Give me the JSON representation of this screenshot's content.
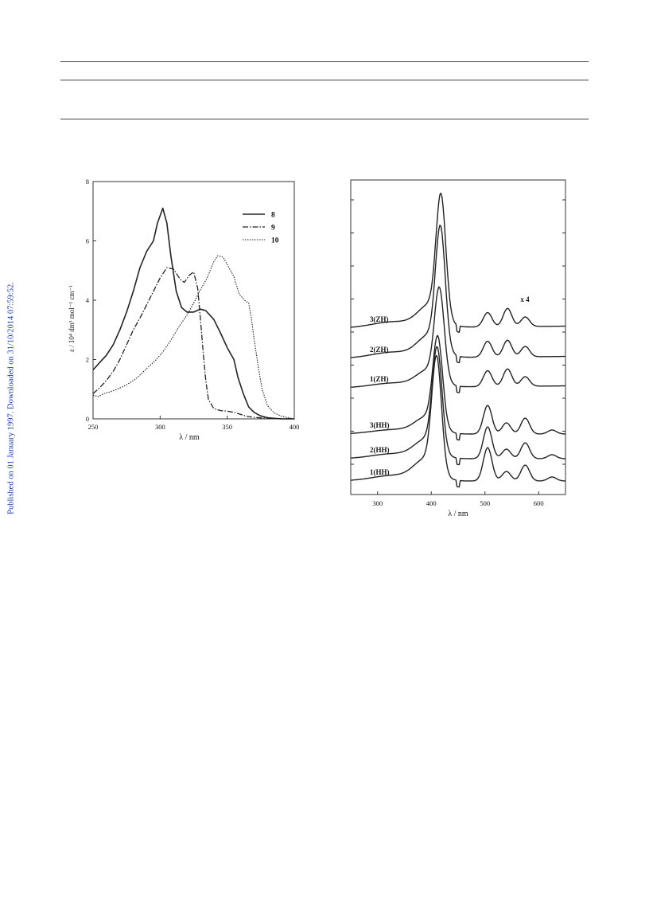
{
  "side_note": "Published on 01 January 1997. Downloaded on 31/10/2014 07:59:52.",
  "chart_data": [
    {
      "type": "line",
      "xlabel": "λ / nm",
      "ylabel": "ε / 10⁴ dm³ mol⁻¹ cm⁻¹",
      "xlim": [
        250,
        400
      ],
      "ylim": [
        0,
        8
      ],
      "x_ticks": [
        250,
        300,
        350,
        400
      ],
      "y_ticks": [
        0,
        2,
        4,
        6,
        8
      ],
      "legend_position": "top-right",
      "series": [
        {
          "name": "8",
          "style": "solid",
          "points": [
            [
              250,
              1.65
            ],
            [
              255,
              1.9
            ],
            [
              260,
              2.15
            ],
            [
              265,
              2.5
            ],
            [
              270,
              3.0
            ],
            [
              275,
              3.6
            ],
            [
              280,
              4.3
            ],
            [
              285,
              5.1
            ],
            [
              290,
              5.65
            ],
            [
              295,
              6.0
            ],
            [
              298,
              6.6
            ],
            [
              302,
              7.1
            ],
            [
              305,
              6.6
            ],
            [
              308,
              5.5
            ],
            [
              312,
              4.3
            ],
            [
              316,
              3.75
            ],
            [
              320,
              3.6
            ],
            [
              325,
              3.6
            ],
            [
              330,
              3.7
            ],
            [
              334,
              3.65
            ],
            [
              340,
              3.35
            ],
            [
              345,
              2.9
            ],
            [
              350,
              2.4
            ],
            [
              355,
              2.0
            ],
            [
              358,
              1.4
            ],
            [
              362,
              0.85
            ],
            [
              366,
              0.4
            ],
            [
              370,
              0.22
            ],
            [
              375,
              0.1
            ],
            [
              380,
              0.04
            ],
            [
              390,
              0.0
            ],
            [
              400,
              0.0
            ]
          ]
        },
        {
          "name": "9",
          "style": "dashdot",
          "points": [
            [
              250,
              0.85
            ],
            [
              255,
              1.05
            ],
            [
              260,
              1.3
            ],
            [
              265,
              1.6
            ],
            [
              270,
              2.0
            ],
            [
              275,
              2.5
            ],
            [
              280,
              3.0
            ],
            [
              285,
              3.4
            ],
            [
              290,
              3.85
            ],
            [
              295,
              4.3
            ],
            [
              300,
              4.75
            ],
            [
              305,
              5.1
            ],
            [
              310,
              5.05
            ],
            [
              315,
              4.7
            ],
            [
              318,
              4.6
            ],
            [
              322,
              4.85
            ],
            [
              325,
              4.95
            ],
            [
              328,
              4.4
            ],
            [
              330,
              3.4
            ],
            [
              332,
              2.3
            ],
            [
              334,
              1.3
            ],
            [
              336,
              0.65
            ],
            [
              340,
              0.35
            ],
            [
              345,
              0.28
            ],
            [
              350,
              0.26
            ],
            [
              355,
              0.22
            ],
            [
              360,
              0.15
            ],
            [
              365,
              0.08
            ],
            [
              370,
              0.05
            ],
            [
              380,
              0.02
            ],
            [
              400,
              0.0
            ]
          ]
        },
        {
          "name": "10",
          "style": "dotted",
          "points": [
            [
              250,
              0.8
            ],
            [
              254,
              0.75
            ],
            [
              258,
              0.85
            ],
            [
              262,
              0.9
            ],
            [
              268,
              1.0
            ],
            [
              275,
              1.15
            ],
            [
              282,
              1.35
            ],
            [
              290,
              1.7
            ],
            [
              296,
              1.95
            ],
            [
              302,
              2.25
            ],
            [
              308,
              2.65
            ],
            [
              314,
              3.1
            ],
            [
              320,
              3.5
            ],
            [
              325,
              3.9
            ],
            [
              330,
              4.35
            ],
            [
              335,
              4.75
            ],
            [
              340,
              5.3
            ],
            [
              343,
              5.5
            ],
            [
              347,
              5.45
            ],
            [
              350,
              5.2
            ],
            [
              355,
              4.8
            ],
            [
              359,
              4.2
            ],
            [
              363,
              4.0
            ],
            [
              366,
              3.9
            ],
            [
              368,
              3.4
            ],
            [
              370,
              2.7
            ],
            [
              373,
              1.8
            ],
            [
              376,
              1.0
            ],
            [
              380,
              0.45
            ],
            [
              385,
              0.2
            ],
            [
              390,
              0.1
            ],
            [
              395,
              0.04
            ],
            [
              400,
              0.0
            ]
          ]
        }
      ]
    },
    {
      "type": "line",
      "xlabel": "λ / nm",
      "xlim": [
        250,
        650
      ],
      "x_ticks": [
        300,
        400,
        500,
        600
      ],
      "annotation": "x 4",
      "series": [
        {
          "name": "1(HH)"
        },
        {
          "name": "2(HH)"
        },
        {
          "name": "3(HH)"
        },
        {
          "name": "1(ZH)"
        },
        {
          "name": "2(ZH)"
        },
        {
          "name": "3(ZH)"
        }
      ]
    }
  ]
}
